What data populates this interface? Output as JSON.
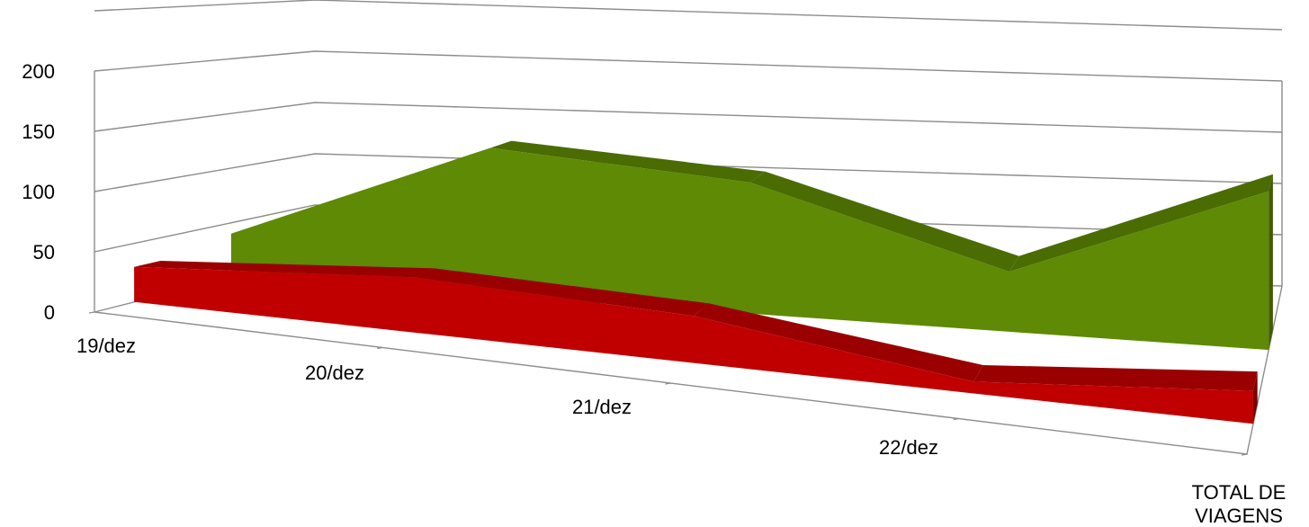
{
  "chart_data": {
    "type": "area",
    "style": "3d",
    "categories": [
      "19/dez",
      "20/dez",
      "21/dez",
      "22/dez",
      "TOTAL DE VIAGENS"
    ],
    "x_tick_labels": [
      {
        "lines": [
          "19/dez"
        ]
      },
      {
        "lines": [
          "20/dez"
        ]
      },
      {
        "lines": [
          "21/dez"
        ]
      },
      {
        "lines": [
          "22/dez"
        ]
      },
      {
        "lines": [
          "TOTAL DE",
          "VIAGENS"
        ]
      }
    ],
    "y_ticks": [
      0,
      50,
      100,
      150,
      200
    ],
    "ylim": [
      0,
      200
    ],
    "grid": true,
    "series": [
      {
        "values": [
          40,
          135,
          120,
          55,
          145
        ],
        "color": "#5E8A05",
        "color_top": "#4A6C03",
        "color_side": "#3F5C02"
      },
      {
        "values": [
          30,
          47,
          40,
          10,
          28
        ],
        "color": "#C00000",
        "color_top": "#9A0000",
        "color_side": "#7A0000"
      }
    ]
  }
}
